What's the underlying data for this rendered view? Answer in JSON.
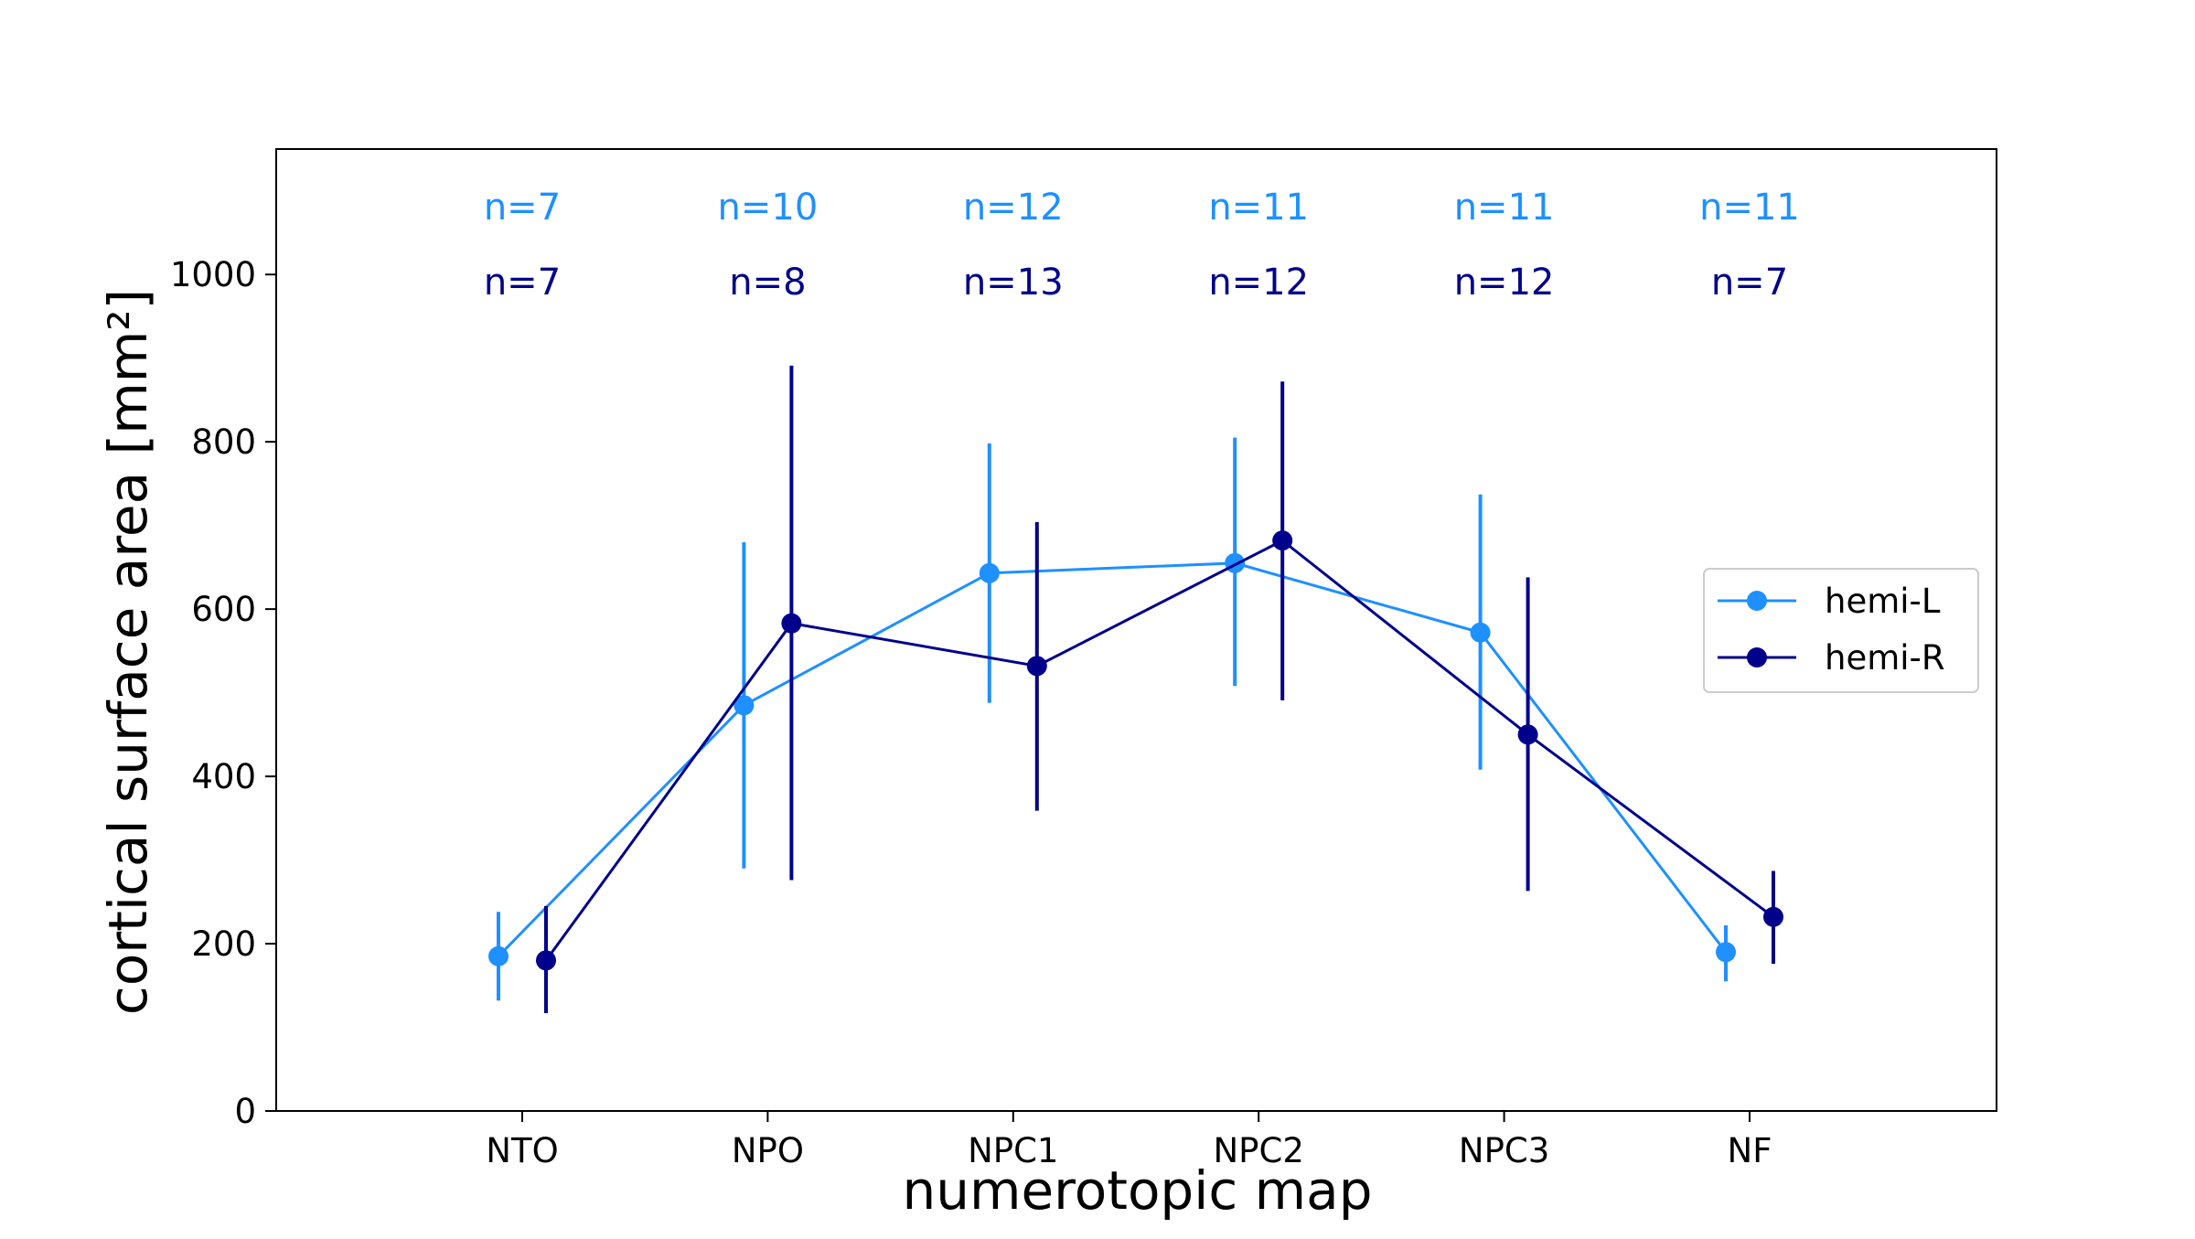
{
  "chart_data": {
    "type": "line",
    "xlabel": "numerotopic map",
    "ylabel": "cortical surface area [mm²]",
    "categories": [
      "NTO",
      "NPO",
      "NPC1",
      "NPC2",
      "NPC3",
      "NF"
    ],
    "ylim": [
      0,
      1150
    ],
    "yticks": [
      0,
      200,
      400,
      600,
      800,
      1000
    ],
    "grid": false,
    "legend_position": "right",
    "series": [
      {
        "name": "hemi-L",
        "color": "#1E90FF",
        "values": [
          185,
          485,
          643,
          655,
          572,
          190
        ],
        "err_low": [
          132,
          290,
          488,
          508,
          408,
          155
        ],
        "err_high": [
          238,
          680,
          798,
          805,
          737,
          222
        ],
        "n_labels": [
          "n=7",
          "n=10",
          "n=12",
          "n=11",
          "n=11",
          "n=11"
        ]
      },
      {
        "name": "hemi-R",
        "color": "#00008B",
        "values": [
          180,
          583,
          532,
          682,
          450,
          232
        ],
        "err_low": [
          117,
          276,
          359,
          491,
          263,
          176
        ],
        "err_high": [
          245,
          891,
          704,
          872,
          638,
          287
        ],
        "n_labels": [
          "n=7",
          "n=8",
          "n=13",
          "n=12",
          "n=12",
          "n=7"
        ]
      }
    ]
  }
}
